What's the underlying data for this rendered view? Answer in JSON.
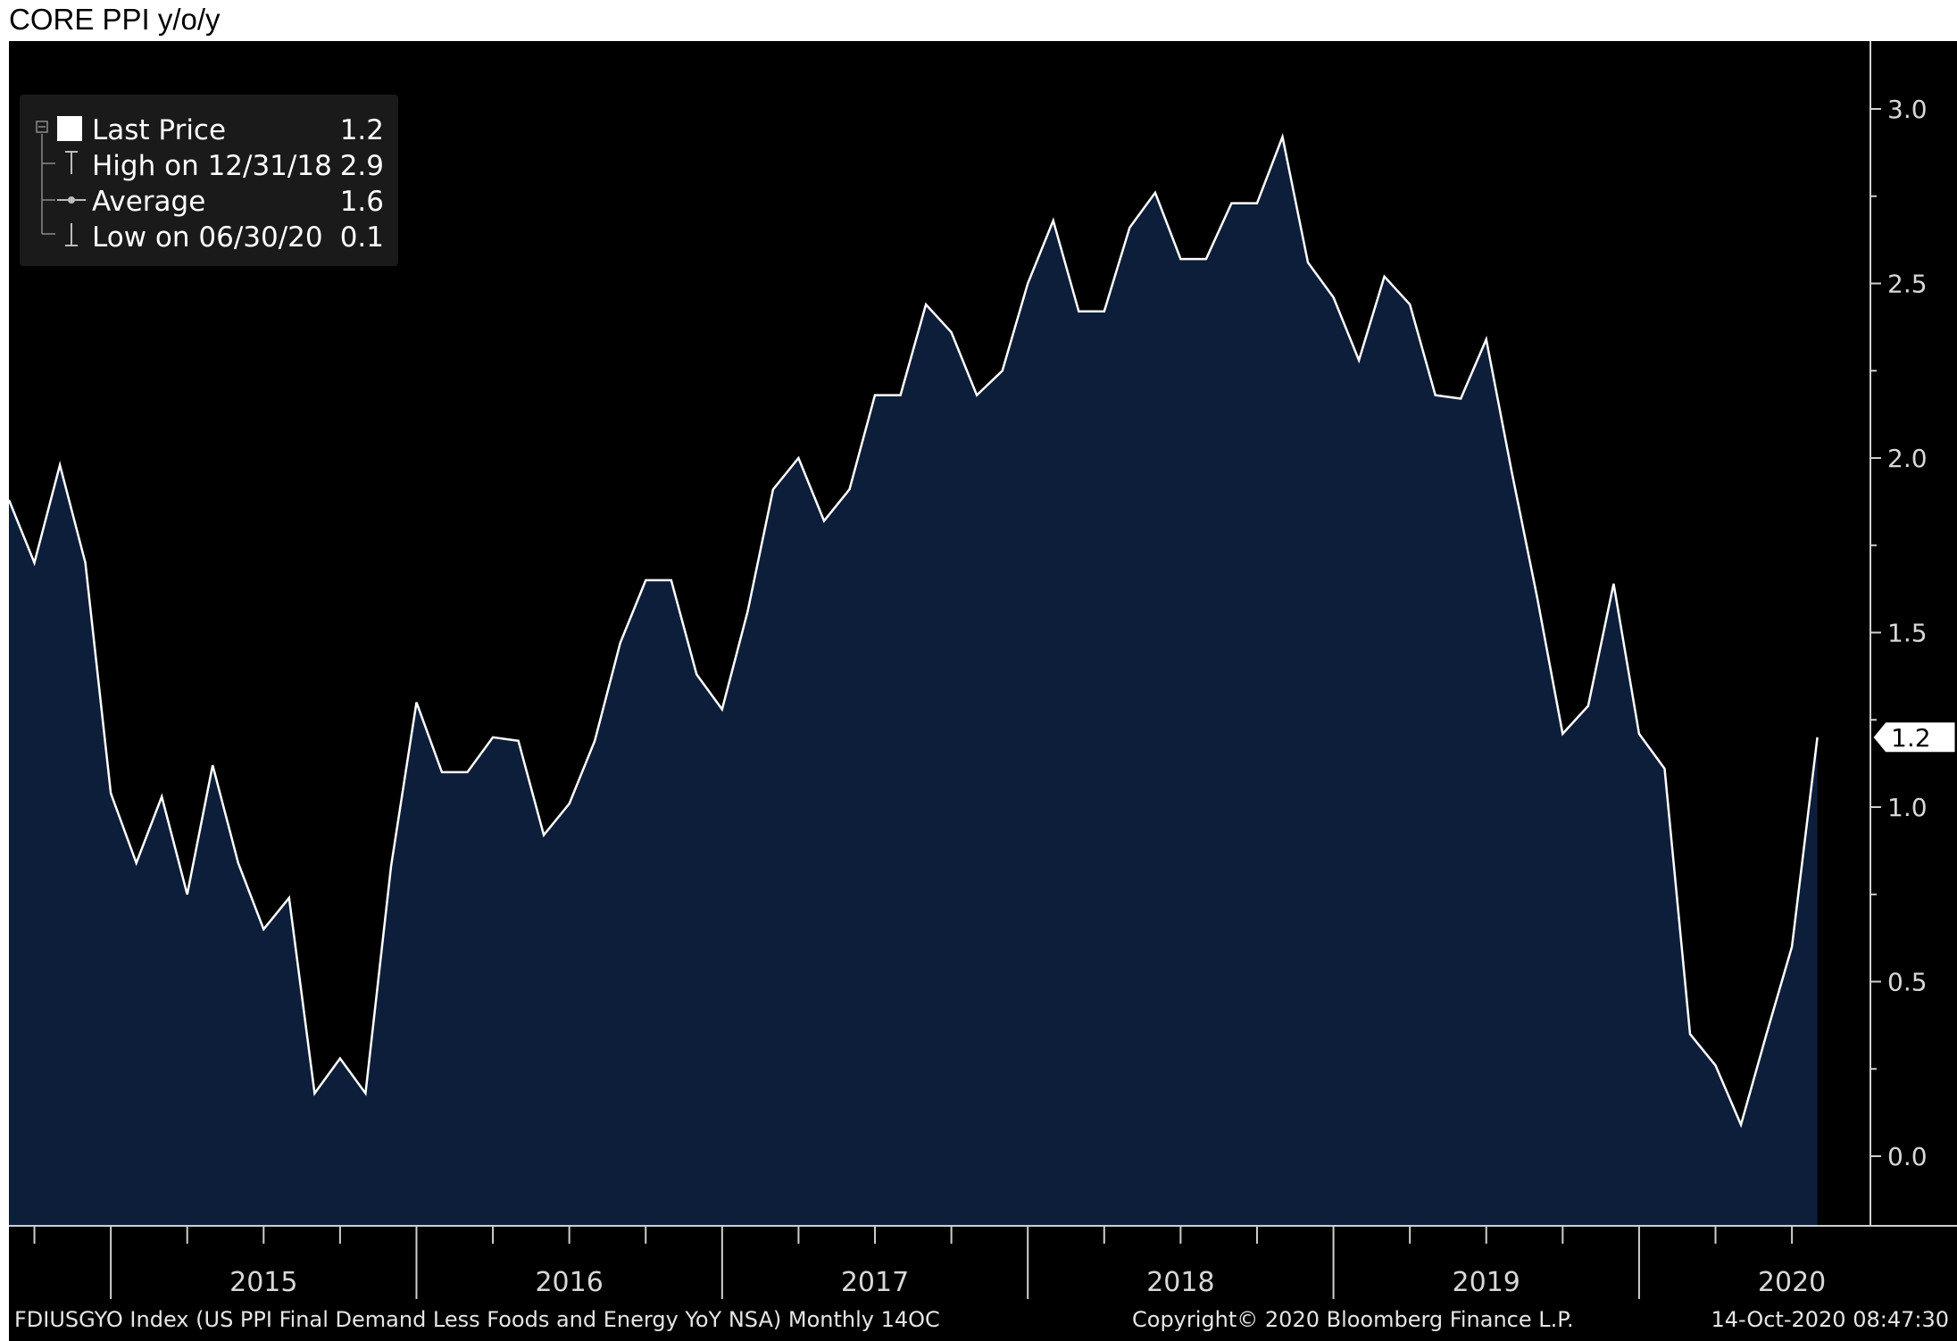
{
  "title": "CORE PPI y/o/y",
  "legend": {
    "rows": [
      {
        "label": "Last Price",
        "value": "1.2"
      },
      {
        "label": "High on 12/31/18",
        "value": "2.9"
      },
      {
        "label": "Average",
        "value": "1.6"
      },
      {
        "label": "Low on 06/30/20",
        "value": "0.1"
      }
    ]
  },
  "footer": {
    "left": "FDIUSGYO Index (US PPI Final Demand Less Foods and Energy YoY NSA)  Monthly 14OC",
    "center": "Copyright© 2020 Bloomberg Finance L.P.",
    "right": "14-Oct-2020 08:47:30"
  },
  "chart_data": {
    "type": "area",
    "title": "CORE PPI y/o/y",
    "x_start": "2014-09",
    "x_end": "2020-09",
    "values": [
      1.88,
      1.7,
      1.98,
      1.7,
      1.04,
      0.84,
      1.03,
      0.75,
      1.12,
      0.84,
      0.65,
      0.74,
      0.18,
      0.28,
      0.18,
      0.83,
      1.3,
      1.1,
      1.1,
      1.2,
      1.19,
      0.92,
      1.01,
      1.19,
      1.47,
      1.65,
      1.65,
      1.38,
      1.28,
      1.56,
      1.91,
      2.0,
      1.82,
      1.91,
      2.18,
      2.18,
      2.44,
      2.36,
      2.18,
      2.25,
      2.5,
      2.68,
      2.42,
      2.42,
      2.66,
      2.76,
      2.57,
      2.57,
      2.73,
      2.73,
      2.92,
      2.56,
      2.46,
      2.28,
      2.52,
      2.44,
      2.18,
      2.17,
      2.34,
      1.96,
      1.6,
      1.21,
      1.29,
      1.64,
      1.21,
      1.11,
      0.35,
      0.26,
      0.09,
      0.35,
      0.6,
      1.2
    ],
    "y_ticks": [
      "0.0",
      "0.5",
      "1.0",
      "1.5",
      "2.0",
      "2.5",
      "3.0"
    ],
    "x_labels": [
      "2015",
      "2016",
      "2017",
      "2018",
      "2019",
      "2020"
    ],
    "last_value_label": "1.2",
    "colors": {
      "background": "#000000",
      "fill": "#0d1e3a",
      "line": "#ffffff"
    }
  }
}
